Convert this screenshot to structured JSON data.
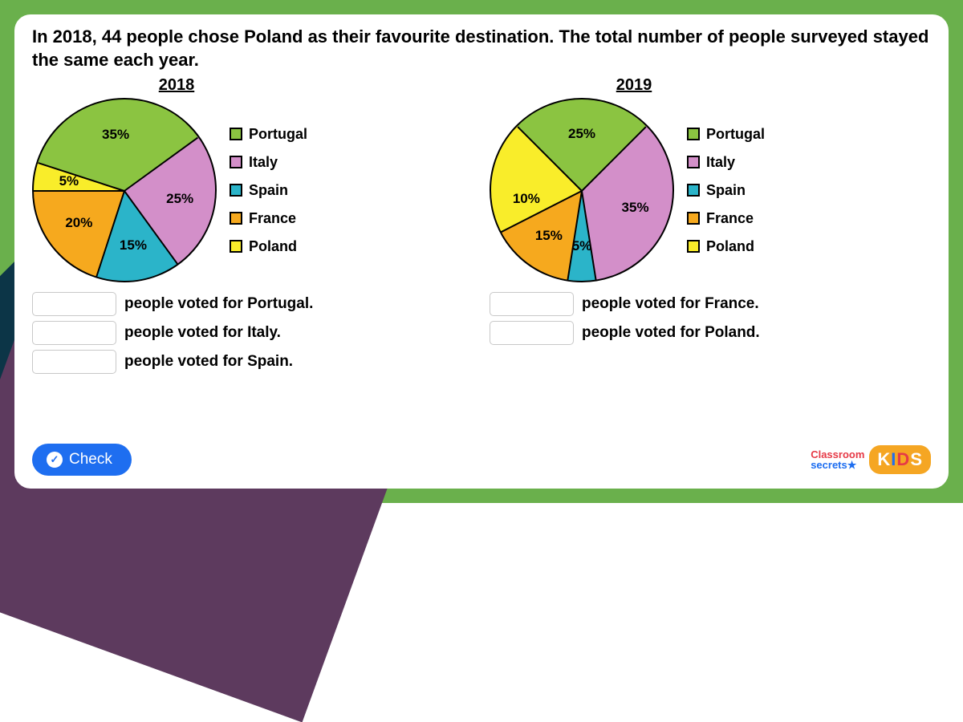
{
  "question": "In 2018, 44 people chose Poland as their favourite destination. The total number of people surveyed stayed the same each year.",
  "colors": {
    "portugal": "#8bc441",
    "italy": "#d38fc9",
    "spain": "#2bb4c9",
    "france": "#f6a91e",
    "poland": "#f9ed2a",
    "border": "#000000",
    "card_bg": "#ffffff",
    "outer_bg": "#6ab04c",
    "button": "#1e6ef0"
  },
  "legend_labels": {
    "portugal": "Portugal",
    "italy": "Italy",
    "spain": "Spain",
    "france": "France",
    "poland": "Poland"
  },
  "charts": [
    {
      "year": "2018",
      "type": "pie",
      "slices": [
        {
          "key": "portugal",
          "label": "35%",
          "value": 35
        },
        {
          "key": "italy",
          "label": "25%",
          "value": 25
        },
        {
          "key": "spain",
          "label": "15%",
          "value": 15
        },
        {
          "key": "france",
          "label": "20%",
          "value": 20
        },
        {
          "key": "poland",
          "label": "5%",
          "value": 5
        }
      ],
      "start_angle_deg": -72,
      "answers": [
        {
          "suffix": "people voted for Portugal.",
          "value": ""
        },
        {
          "suffix": "people voted for Italy.",
          "value": ""
        },
        {
          "suffix": "people voted for Spain.",
          "value": ""
        }
      ]
    },
    {
      "year": "2019",
      "type": "pie",
      "slices": [
        {
          "key": "portugal",
          "label": "25%",
          "value": 25
        },
        {
          "key": "italy",
          "label": "35%",
          "value": 35
        },
        {
          "key": "spain",
          "label": "5%",
          "value": 5
        },
        {
          "key": "france",
          "label": "15%",
          "value": 15
        },
        {
          "key": "poland",
          "label": "10%",
          "value": 10
        }
      ],
      "start_angle_deg": -45,
      "answers": [
        {
          "suffix": "people voted for France.",
          "value": ""
        },
        {
          "suffix": "people voted for Poland.",
          "value": ""
        }
      ]
    }
  ],
  "check_label": "Check",
  "brand": {
    "line1": "Classroom",
    "line2": "secrets",
    "kids": "KIDS"
  },
  "typography": {
    "question_fontsize": 22,
    "label_fontsize": 17,
    "legend_fontsize": 18
  }
}
